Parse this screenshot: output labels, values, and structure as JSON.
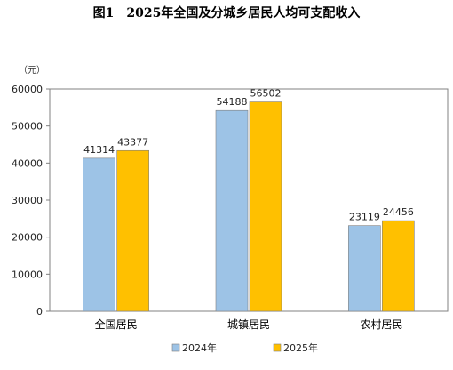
{
  "chart_data": {
    "type": "bar",
    "title": "图1　2025年全国及分城乡居民人均可支配收入",
    "ylabel": "（元）",
    "xlabel": "",
    "ylim": [
      0,
      60000
    ],
    "yticks": [
      0,
      10000,
      20000,
      30000,
      40000,
      50000,
      60000
    ],
    "categories": [
      "全国居民",
      "城镇居民",
      "农村居民"
    ],
    "series": [
      {
        "name": "2024年",
        "values": [
          41314,
          54188,
          23119
        ],
        "color": "#9DC3E6"
      },
      {
        "name": "2025年",
        "values": [
          43377,
          56502,
          24456
        ],
        "color": "#FFC000"
      }
    ],
    "grid": false,
    "legend": "bottom"
  }
}
